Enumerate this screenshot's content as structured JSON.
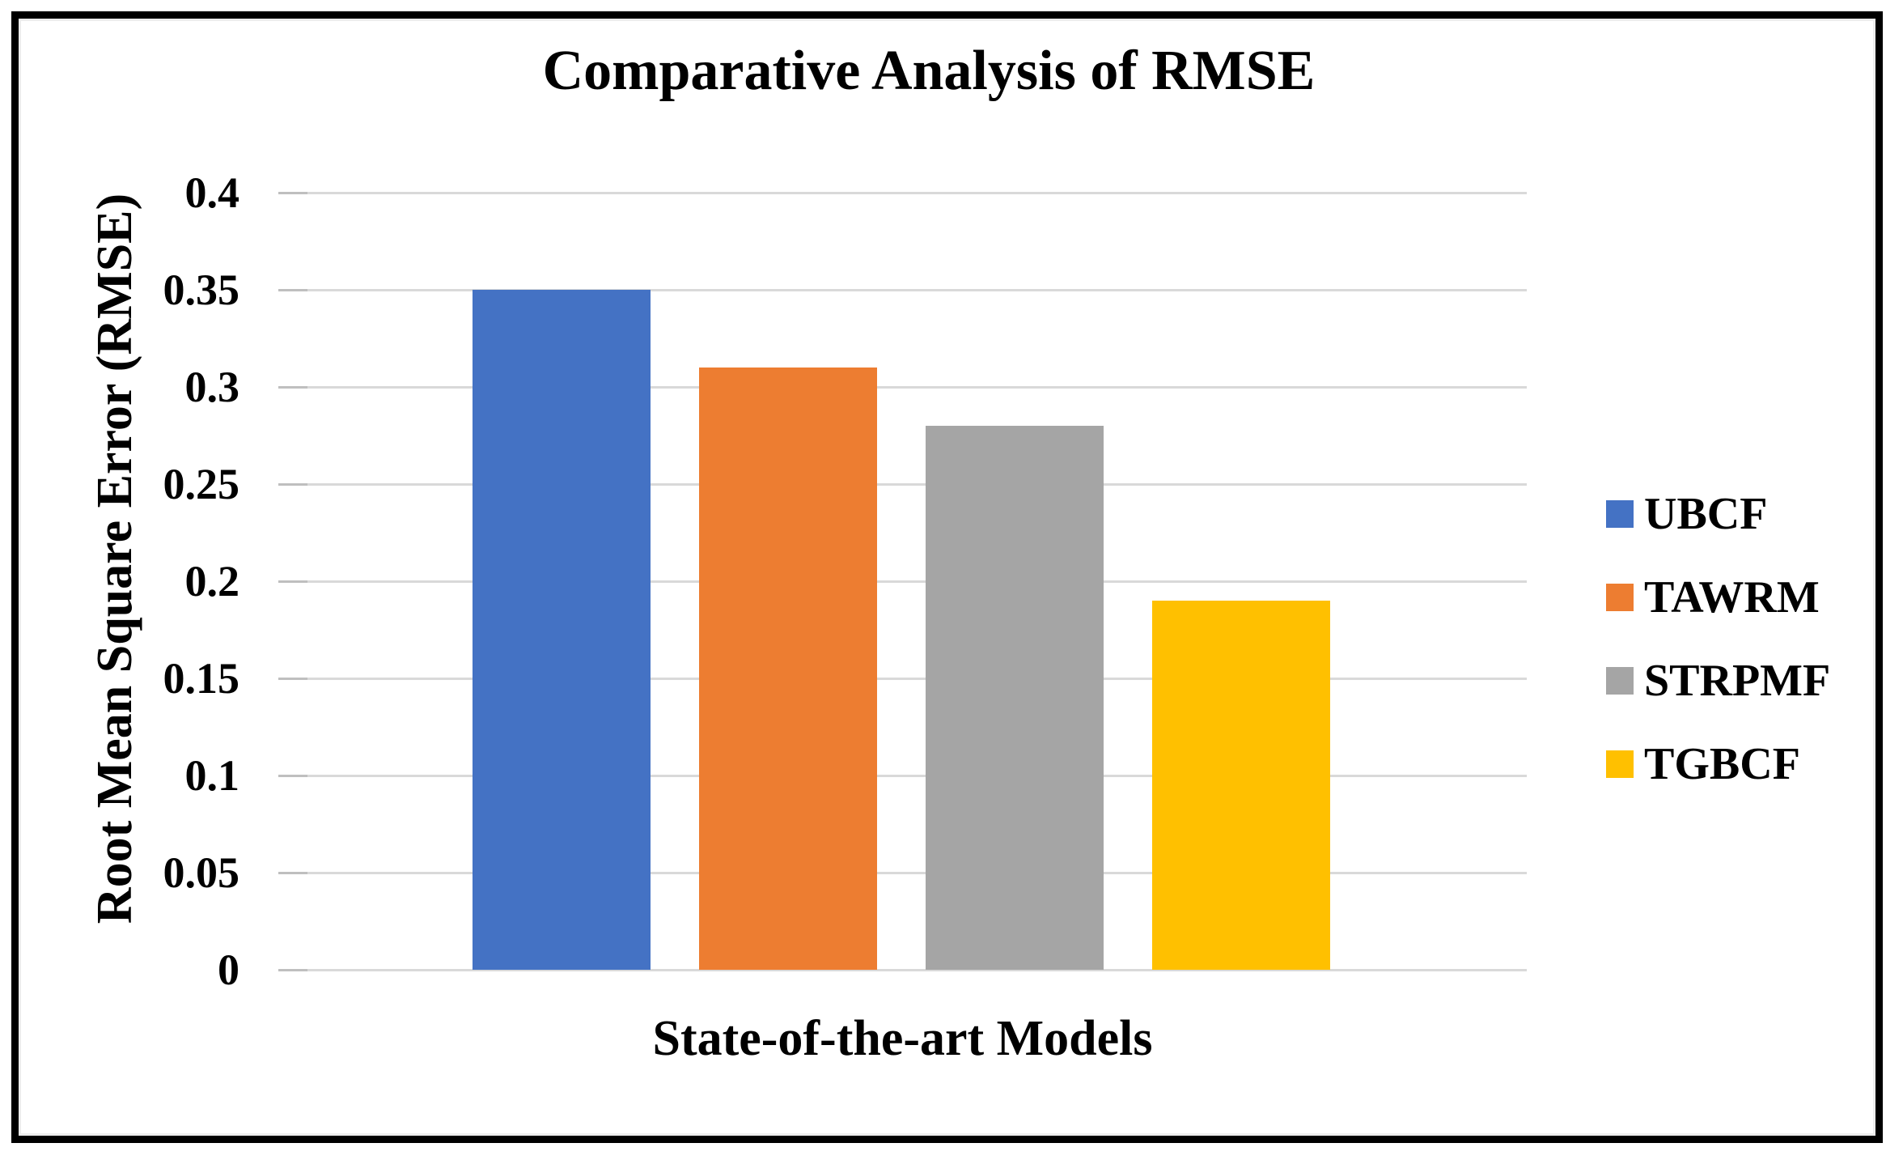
{
  "chart_data": {
    "type": "bar",
    "title": "Comparative Analysis of RMSE",
    "xlabel": "State-of-the-art Models",
    "ylabel": "Root Mean Square Error (RMSE)",
    "categories": [
      "UBCF",
      "TAWRM",
      "STRPMF",
      "TGBCF"
    ],
    "values": [
      0.35,
      0.31,
      0.28,
      0.19
    ],
    "colors": [
      "#4472C4",
      "#ED7D31",
      "#A5A5A5",
      "#FFC000"
    ],
    "ylim": [
      0,
      0.4
    ],
    "ytick_step": 0.05,
    "ytick_labels_bottom_up": [
      "0",
      "0.05",
      "0.1",
      "0.15",
      "0.2",
      "0.25",
      "0.3",
      "0.35",
      "0.4"
    ],
    "grid": true,
    "gridline_color": "#D9D9D9",
    "tick_color": "#BFBFBF",
    "legend_position": "right",
    "background_color": "#FFFFFF",
    "border_color": "#000000"
  }
}
